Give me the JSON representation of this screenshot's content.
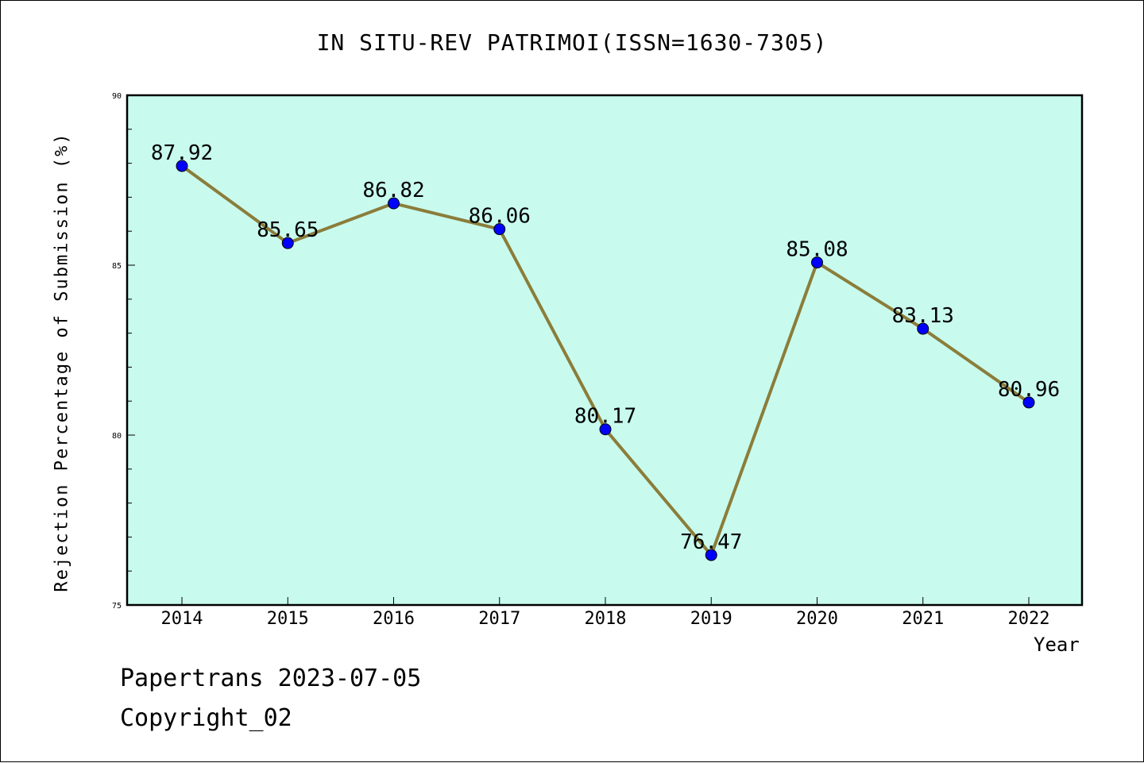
{
  "chart_data": {
    "type": "line",
    "title": "IN SITU-REV PATRIMOI(ISSN=1630-7305)",
    "xlabel": "Year",
    "ylabel": "Rejection Percentage of Submission (%)",
    "categories": [
      "2014",
      "2015",
      "2016",
      "2017",
      "2018",
      "2019",
      "2020",
      "2021",
      "2022"
    ],
    "values": [
      87.92,
      85.65,
      86.82,
      86.06,
      80.17,
      76.47,
      85.08,
      83.13,
      80.96
    ],
    "data_labels": [
      "87.92",
      "85.65",
      "86.82",
      "86.06",
      "80.17",
      "76.47",
      "85.08",
      "83.13",
      "80.96"
    ],
    "ylim": [
      75,
      90
    ],
    "yticks": [
      "75",
      "80",
      "85",
      "90"
    ],
    "grid": false,
    "plot_background": "#c8fbee",
    "line_color": "#8b7d3a",
    "marker_color": "#0000ff"
  },
  "footer": {
    "date_line": "Papertrans 2023-07-05",
    "copyright_line": "Copyright_02"
  }
}
